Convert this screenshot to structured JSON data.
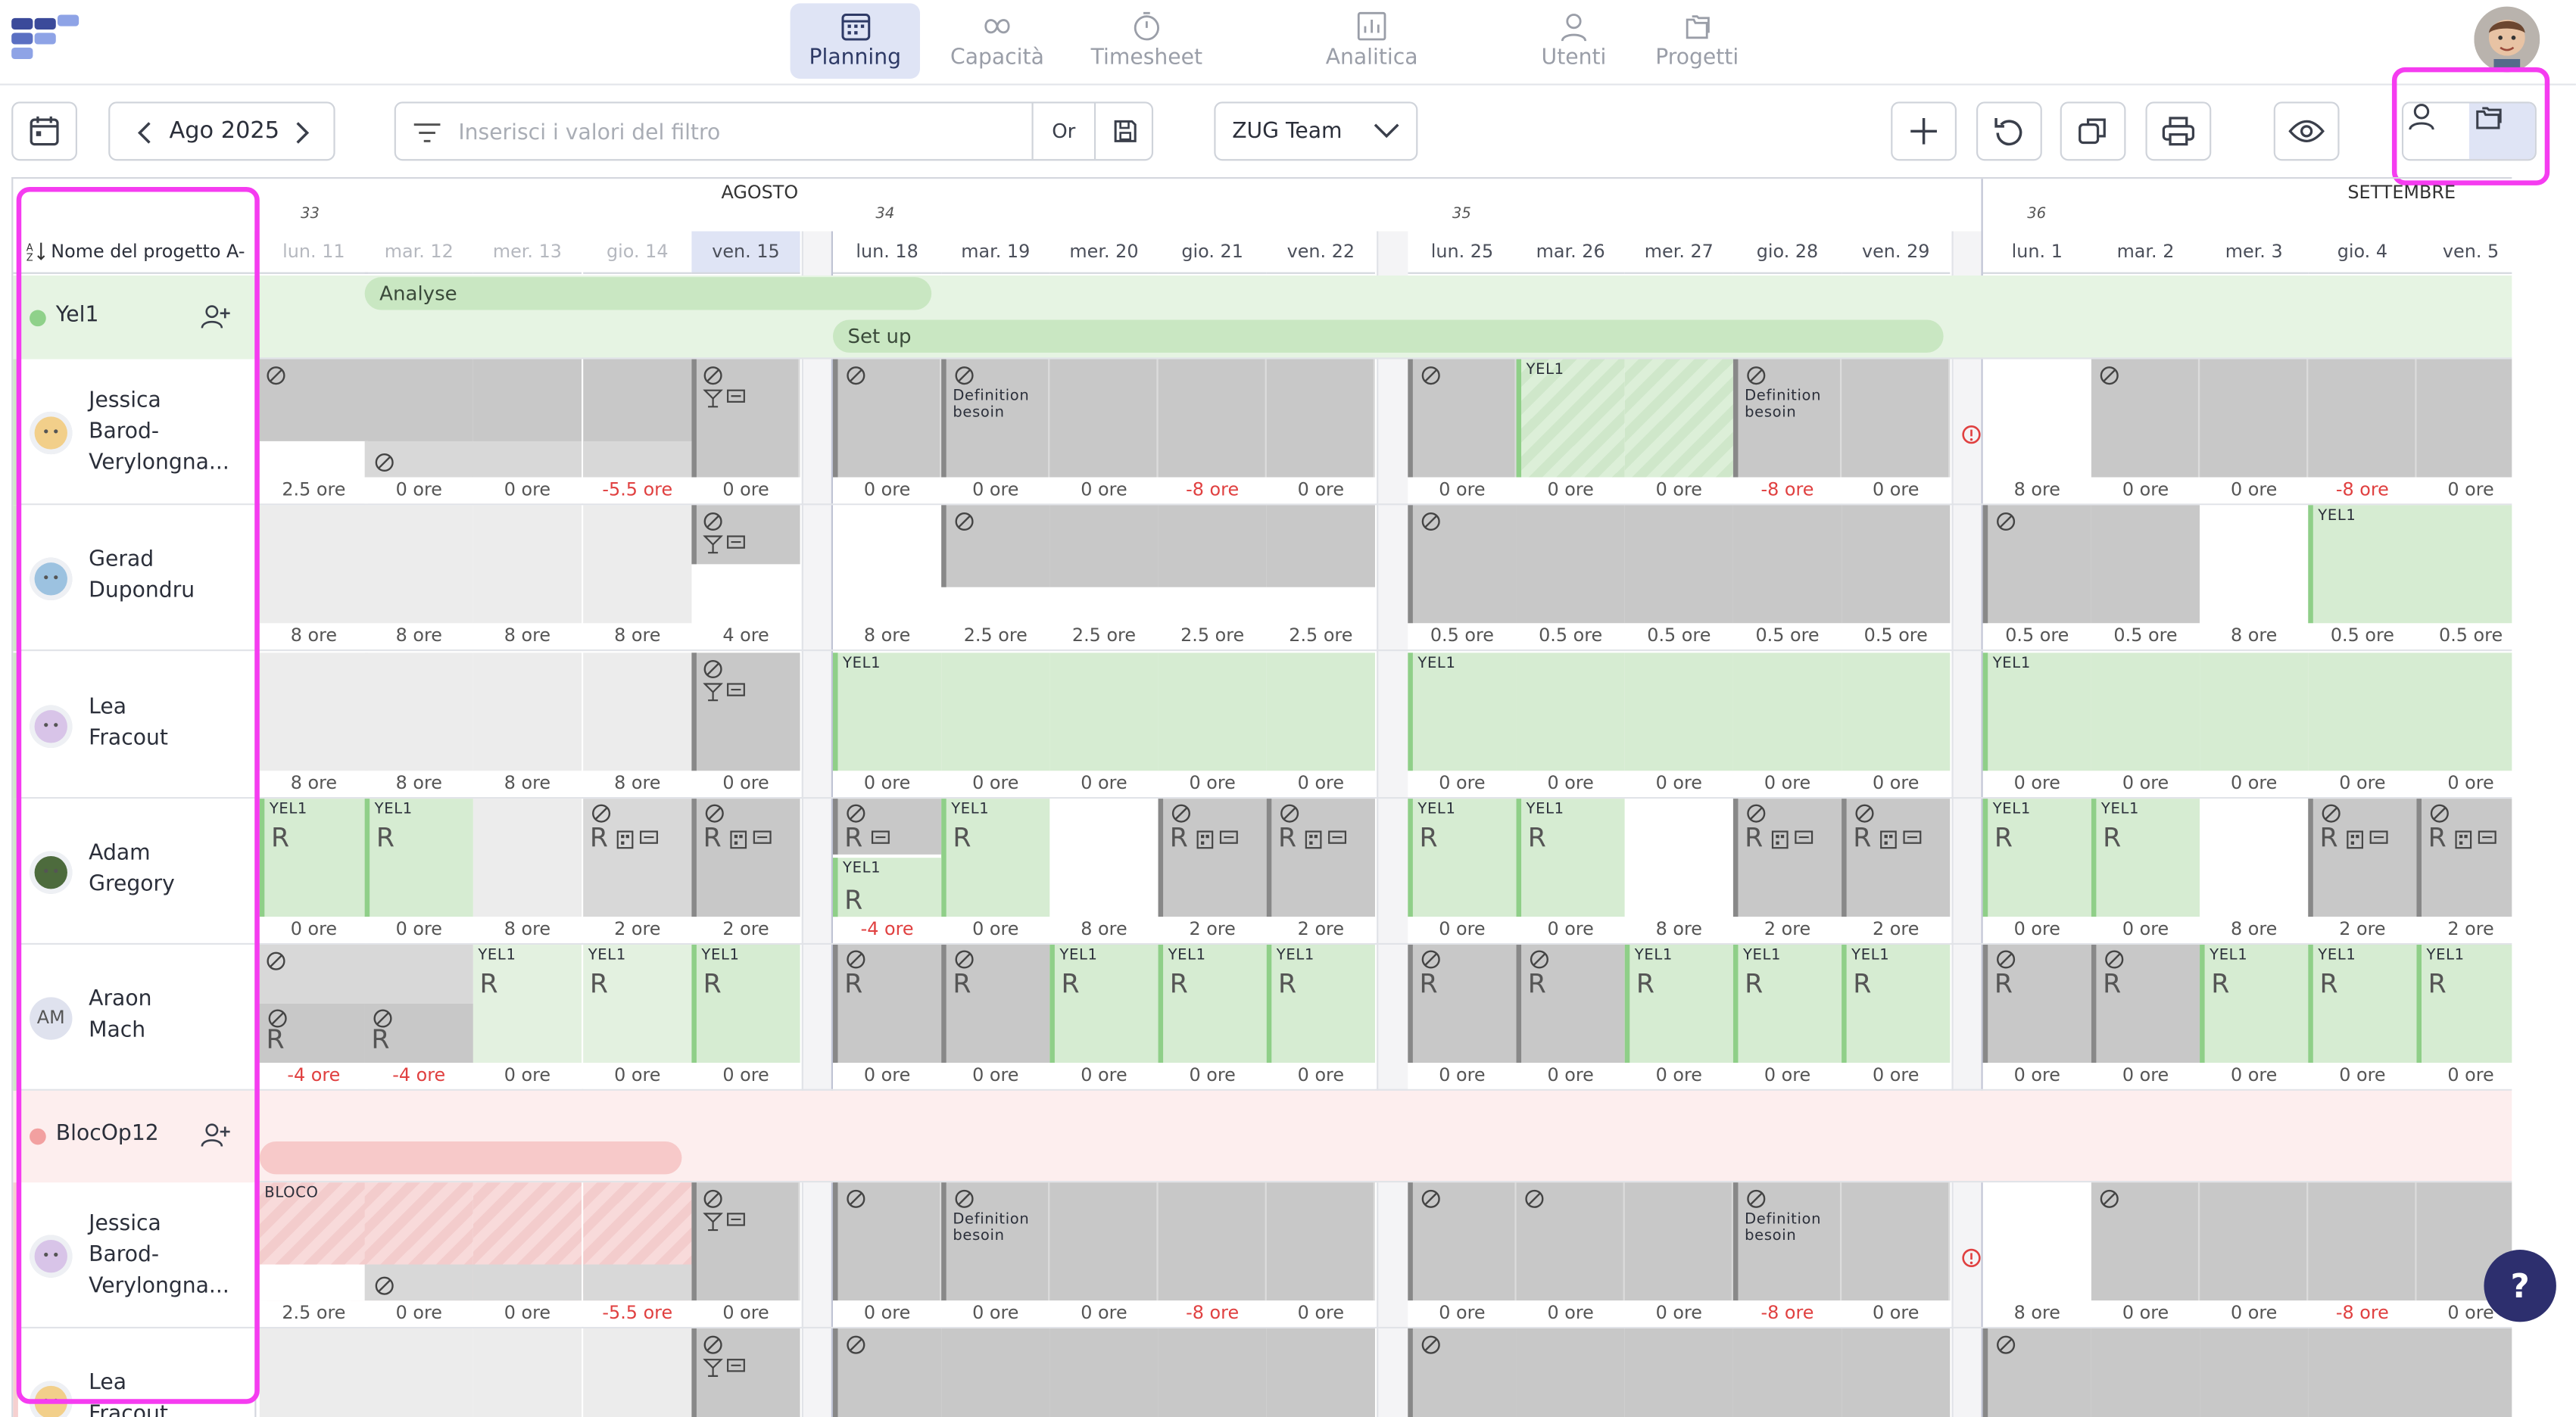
{
  "nav": {
    "items": [
      {
        "label": "Planning",
        "icon": "calendar-icon",
        "active": true
      },
      {
        "label": "Capacità",
        "icon": "infinity-icon"
      },
      {
        "label": "Timesheet",
        "icon": "stopwatch-icon"
      },
      {
        "label": "Analitica",
        "icon": "bar-chart-icon"
      },
      {
        "label": "Utenti",
        "icon": "user-icon"
      },
      {
        "label": "Progetti",
        "icon": "folders-icon"
      }
    ]
  },
  "toolbar": {
    "month": "Ago 2025",
    "filter_placeholder": "Inserisci i valori del filtro",
    "filter_mode": "Or",
    "team": "ZUG Team"
  },
  "calendar": {
    "months": [
      "AGOSTO",
      "SETTEMBRE"
    ],
    "weeks": [
      "33",
      "34",
      "35",
      "36"
    ],
    "column_header": "Nome del progetto A-",
    "days": [
      "lun. 11",
      "mar. 12",
      "mer. 13",
      "gio. 14",
      "ven. 15",
      "lun. 18",
      "mar. 19",
      "mer. 20",
      "gio. 21",
      "ven. 22",
      "lun. 25",
      "mar. 26",
      "mer. 27",
      "gio. 28",
      "ven. 29",
      "lun. 1",
      "mar. 2",
      "mer. 3",
      "gio. 4",
      "ven. 5"
    ],
    "today_index": 4
  },
  "projects": [
    {
      "name": "Yel1",
      "color": "#8fd18a",
      "phases": [
        "Analyse",
        "Set up"
      ]
    },
    {
      "name": "BlocOp12",
      "color": "#f2a0a0"
    }
  ],
  "labels": {
    "definition": "Definition besoin",
    "yel": "YEL1",
    "bloco": "BLOCO",
    "r": "R"
  },
  "people": [
    {
      "first": "Jessica",
      "last": "Barod-",
      "last2": "Verylongna...",
      "hours": [
        "2.5 ore",
        "0 ore",
        "0 ore",
        "-5.5 ore",
        "0 ore",
        "0 ore",
        "0 ore",
        "0 ore",
        "-8 ore",
        "0 ore",
        "0 ore",
        "0 ore",
        "0 ore",
        "-8 ore",
        "0 ore",
        "8 ore",
        "0 ore",
        "0 ore",
        "-8 ore",
        "0 ore"
      ]
    },
    {
      "first": "Gerad",
      "last": "Dupondru",
      "hours": [
        "8 ore",
        "8 ore",
        "8 ore",
        "8 ore",
        "4 ore",
        "8 ore",
        "2.5 ore",
        "2.5 ore",
        "2.5 ore",
        "2.5 ore",
        "0.5 ore",
        "0.5 ore",
        "0.5 ore",
        "0.5 ore",
        "0.5 ore",
        "0.5 ore",
        "0.5 ore",
        "8 ore",
        "0.5 ore",
        "0.5 ore"
      ]
    },
    {
      "first": "Lea",
      "last": "Fracout",
      "hours": [
        "8 ore",
        "8 ore",
        "8 ore",
        "8 ore",
        "0 ore",
        "0 ore",
        "0 ore",
        "0 ore",
        "0 ore",
        "0 ore",
        "0 ore",
        "0 ore",
        "0 ore",
        "0 ore",
        "0 ore",
        "0 ore",
        "0 ore",
        "0 ore",
        "0 ore",
        "0 ore"
      ]
    },
    {
      "first": "Adam",
      "last": "Gregory",
      "hours": [
        "0 ore",
        "0 ore",
        "8 ore",
        "2 ore",
        "2 ore",
        "-4 ore",
        "0 ore",
        "8 ore",
        "2 ore",
        "2 ore",
        "0 ore",
        "0 ore",
        "8 ore",
        "2 ore",
        "2 ore",
        "0 ore",
        "0 ore",
        "8 ore",
        "2 ore",
        "2 ore"
      ]
    },
    {
      "first": "Araon",
      "last": "Mach",
      "initials": "AM",
      "hours": [
        "-4 ore",
        "-4 ore",
        "0 ore",
        "0 ore",
        "0 ore",
        "0 ore",
        "0 ore",
        "0 ore",
        "0 ore",
        "0 ore",
        "0 ore",
        "0 ore",
        "0 ore",
        "0 ore",
        "0 ore",
        "0 ore",
        "0 ore",
        "0 ore",
        "0 ore",
        "0 ore"
      ]
    },
    {
      "first": "Jessica",
      "last": "Barod-",
      "last2": "Verylongna...",
      "hours": [
        "2.5 ore",
        "0 ore",
        "0 ore",
        "-5.5 ore",
        "0 ore",
        "0 ore",
        "0 ore",
        "0 ore",
        "-8 ore",
        "0 ore",
        "0 ore",
        "0 ore",
        "0 ore",
        "-8 ore",
        "0 ore",
        "8 ore",
        "0 ore",
        "0 ore",
        "-8 ore",
        "0 ore"
      ]
    },
    {
      "first": "Lea",
      "last": "Fracout"
    }
  ],
  "help": "?"
}
